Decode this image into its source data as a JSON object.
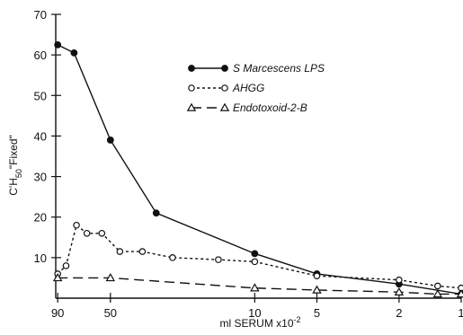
{
  "chart_data": {
    "type": "line",
    "title": "",
    "xlabel": "ml SERUM x10",
    "xlabel_exponent": "-2",
    "ylabel": "C'H50\"Fixed\"",
    "ylabel_parts": {
      "main": "C'H",
      "sub": "50",
      "tail": "\"Fixed\""
    },
    "x_scale": "log-reversed",
    "xlim": [
      92,
      1
    ],
    "ylim": [
      0,
      70
    ],
    "x_ticks": [
      90,
      50,
      10,
      5,
      2,
      1
    ],
    "x_tick_labels": [
      "90",
      "50",
      "10",
      "5",
      "2",
      "1"
    ],
    "y_ticks": [
      10,
      20,
      30,
      40,
      50,
      60,
      70
    ],
    "y_tick_labels": [
      "10",
      "20",
      "30",
      "40",
      "50",
      "60",
      "70"
    ],
    "grid": false,
    "legend_position": "top-right",
    "series": [
      {
        "name": "S Marcescens LPS",
        "marker": "filled-circle",
        "line": "solid",
        "color": "#111111",
        "x": [
          90,
          75,
          50,
          30,
          10,
          5,
          2,
          1
        ],
        "y": [
          62.5,
          60.5,
          39,
          21,
          11,
          6,
          3.5,
          1
        ]
      },
      {
        "name": "AHGG",
        "marker": "open-circle",
        "line": "dotted",
        "color": "#111111",
        "x": [
          90,
          82,
          73,
          65,
          55,
          45,
          35,
          25,
          15,
          10,
          5,
          2,
          1.3,
          1
        ],
        "y": [
          6,
          8,
          18,
          16,
          16,
          11.5,
          11.5,
          10,
          9.5,
          9,
          5.5,
          4.5,
          3,
          2.5
        ]
      },
      {
        "name": "Endotoxoid-2-B",
        "marker": "open-triangle",
        "line": "dashed",
        "color": "#111111",
        "x": [
          90,
          50,
          10,
          5,
          2,
          1.3,
          1
        ],
        "y": [
          5,
          5,
          2.5,
          2,
          1.5,
          1,
          1
        ]
      }
    ]
  }
}
